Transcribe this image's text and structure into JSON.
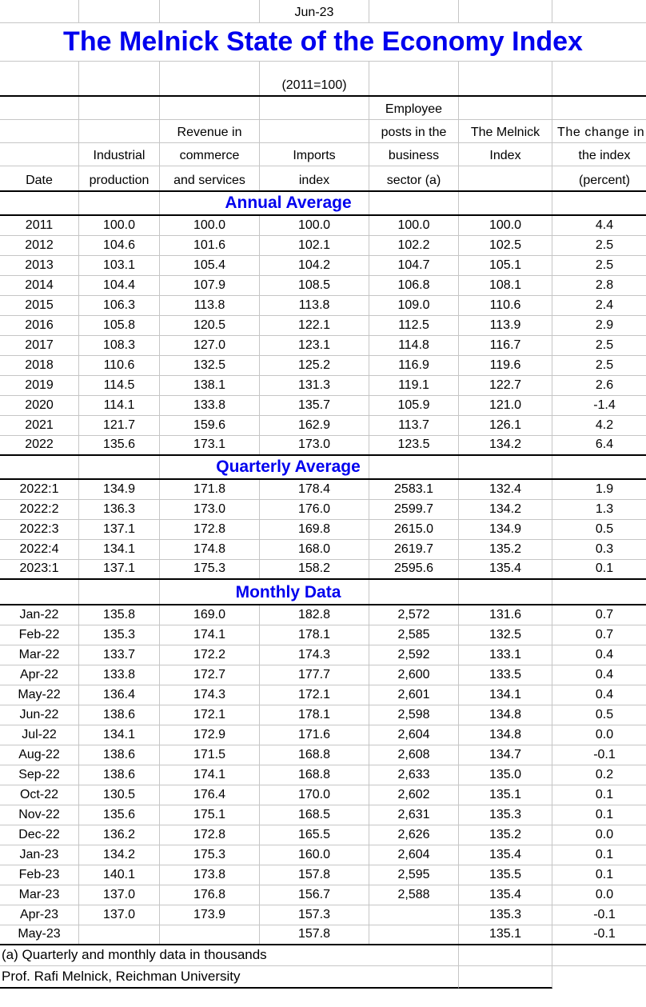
{
  "meta": {
    "date_label": "Jun-23",
    "title": "The Melnick State of the Economy Index",
    "subtitle": "(2011=100)"
  },
  "colors": {
    "accent_blue": "#0000ee",
    "gridline": "#c6c6c6",
    "separator": "#000000"
  },
  "header": {
    "rows": [
      [
        "",
        "",
        "",
        "",
        "Employee",
        "",
        ""
      ],
      [
        "",
        "",
        "Revenue in",
        "",
        "posts in the",
        "The Melnick",
        "The change in"
      ],
      [
        "",
        "Industrial",
        "commerce",
        "Imports",
        "business",
        "Index",
        "the index"
      ],
      [
        "Date",
        "production",
        "and services",
        "index",
        "sector (a)",
        "",
        "(percent)"
      ]
    ]
  },
  "sections": [
    {
      "label": "Annual Average",
      "rows": [
        [
          "2011",
          "100.0",
          "100.0",
          "100.0",
          "100.0",
          "100.0",
          "4.4"
        ],
        [
          "2012",
          "104.6",
          "101.6",
          "102.1",
          "102.2",
          "102.5",
          "2.5"
        ],
        [
          "2013",
          "103.1",
          "105.4",
          "104.2",
          "104.7",
          "105.1",
          "2.5"
        ],
        [
          "2014",
          "104.4",
          "107.9",
          "108.5",
          "106.8",
          "108.1",
          "2.8"
        ],
        [
          "2015",
          "106.3",
          "113.8",
          "113.8",
          "109.0",
          "110.6",
          "2.4"
        ],
        [
          "2016",
          "105.8",
          "120.5",
          "122.1",
          "112.5",
          "113.9",
          "2.9"
        ],
        [
          "2017",
          "108.3",
          "127.0",
          "123.1",
          "114.8",
          "116.7",
          "2.5"
        ],
        [
          "2018",
          "110.6",
          "132.5",
          "125.2",
          "116.9",
          "119.6",
          "2.5"
        ],
        [
          "2019",
          "114.5",
          "138.1",
          "131.3",
          "119.1",
          "122.7",
          "2.6"
        ],
        [
          "2020",
          "114.1",
          "133.8",
          "135.7",
          "105.9",
          "121.0",
          "-1.4"
        ],
        [
          "2021",
          "121.7",
          "159.6",
          "162.9",
          "113.7",
          "126.1",
          "4.2"
        ],
        [
          "2022",
          "135.6",
          "173.1",
          "173.0",
          "123.5",
          "134.2",
          "6.4"
        ]
      ]
    },
    {
      "label": "Quarterly Average",
      "rows": [
        [
          "2022:1",
          "134.9",
          "171.8",
          "178.4",
          "2583.1",
          "132.4",
          "1.9"
        ],
        [
          "2022:2",
          "136.3",
          "173.0",
          "176.0",
          "2599.7",
          "134.2",
          "1.3"
        ],
        [
          "2022:3",
          "137.1",
          "172.8",
          "169.8",
          "2615.0",
          "134.9",
          "0.5"
        ],
        [
          "2022:4",
          "134.1",
          "174.8",
          "168.0",
          "2619.7",
          "135.2",
          "0.3"
        ],
        [
          "2023:1",
          "137.1",
          "175.3",
          "158.2",
          "2595.6",
          "135.4",
          "0.1"
        ]
      ]
    },
    {
      "label": "Monthly Data",
      "rows": [
        [
          "Jan-22",
          "135.8",
          "169.0",
          "182.8",
          "2,572",
          "131.6",
          "0.7"
        ],
        [
          "Feb-22",
          "135.3",
          "174.1",
          "178.1",
          "2,585",
          "132.5",
          "0.7"
        ],
        [
          "Mar-22",
          "133.7",
          "172.2",
          "174.3",
          "2,592",
          "133.1",
          "0.4"
        ],
        [
          "Apr-22",
          "133.8",
          "172.7",
          "177.7",
          "2,600",
          "133.5",
          "0.4"
        ],
        [
          "May-22",
          "136.4",
          "174.3",
          "172.1",
          "2,601",
          "134.1",
          "0.4"
        ],
        [
          "Jun-22",
          "138.6",
          "172.1",
          "178.1",
          "2,598",
          "134.8",
          "0.5"
        ],
        [
          "Jul-22",
          "134.1",
          "172.9",
          "171.6",
          "2,604",
          "134.8",
          "0.0"
        ],
        [
          "Aug-22",
          "138.6",
          "171.5",
          "168.8",
          "2,608",
          "134.7",
          "-0.1"
        ],
        [
          "Sep-22",
          "138.6",
          "174.1",
          "168.8",
          "2,633",
          "135.0",
          "0.2"
        ],
        [
          "Oct-22",
          "130.5",
          "176.4",
          "170.0",
          "2,602",
          "135.1",
          "0.1"
        ],
        [
          "Nov-22",
          "135.6",
          "175.1",
          "168.5",
          "2,631",
          "135.3",
          "0.1"
        ],
        [
          "Dec-22",
          "136.2",
          "172.8",
          "165.5",
          "2,626",
          "135.2",
          "0.0"
        ],
        [
          "Jan-23",
          "134.2",
          "175.3",
          "160.0",
          "2,604",
          "135.4",
          "0.1"
        ],
        [
          "Feb-23",
          "140.1",
          "173.8",
          "157.8",
          "2,595",
          "135.5",
          "0.1"
        ],
        [
          "Mar-23",
          "137.0",
          "176.8",
          "156.7",
          "2,588",
          "135.4",
          "0.0"
        ],
        [
          "Apr-23",
          "137.0",
          "173.9",
          "157.3",
          "",
          "135.3",
          "-0.1"
        ],
        [
          "May-23",
          "",
          "",
          "157.8",
          "",
          "135.1",
          "-0.1"
        ]
      ]
    }
  ],
  "footnotes": {
    "note_a": "(a) Quarterly and monthly data in thousands",
    "credit": "Prof. Rafi Melnick, Reichman University"
  }
}
